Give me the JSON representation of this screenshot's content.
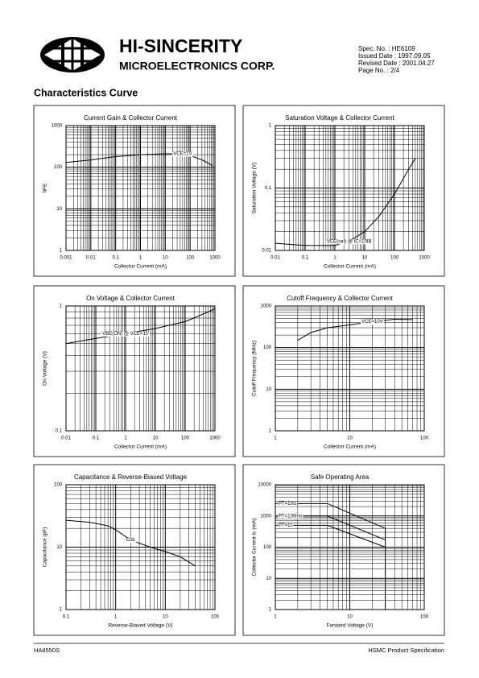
{
  "header": {
    "company": "HI-SINCERITY",
    "division": "MICROELECTRONICS CORP.",
    "spec_lines": [
      "Spec. No. : HE6109",
      "Issued Date : 1997.09.05",
      "Revised Date : 2001.04.27",
      "Page No. : 2/4"
    ]
  },
  "section_title": "Characteristics Curve",
  "footer": {
    "left": "HA8550S",
    "right": "HSMC Product Specification"
  },
  "chart_data": [
    {
      "type": "line",
      "title": "Current Gain & Collector Current",
      "x_label": "Collector Current (mA)",
      "y_label": "hFE",
      "log_x": true,
      "log_y": true,
      "grid": true,
      "xlim": [
        0.001,
        1000
      ],
      "xticks": [
        0.001,
        0.01,
        0.1,
        1,
        10,
        100,
        1000
      ],
      "ylim": [
        1,
        1000
      ],
      "yticks": [
        1,
        10,
        100,
        1000
      ],
      "x": [
        0.001,
        0.01,
        0.1,
        1,
        10,
        50,
        100,
        300,
        800
      ],
      "series": [
        {
          "name": "VCE=1V",
          "color": "#000000",
          "values": [
            130,
            150,
            180,
            200,
            210,
            210,
            190,
            150,
            110
          ]
        }
      ]
    },
    {
      "type": "line",
      "title": "Saturation Voltage & Collector Current",
      "x_label": "Collector Current (mA)",
      "y_label": "Saturation Voltage (V)",
      "log_x": true,
      "log_y": true,
      "grid": true,
      "xlim": [
        0.01,
        1000
      ],
      "xticks": [
        0.01,
        0.1,
        1,
        10,
        100,
        1000
      ],
      "ylim": [
        0.01,
        1
      ],
      "yticks": [
        0.01,
        0.1,
        1
      ],
      "x": [
        0.01,
        0.1,
        1,
        3,
        10,
        30,
        100,
        300,
        500
      ],
      "series": [
        {
          "name": "VCE(sat) @ IC=10IB",
          "color": "#000000",
          "values": [
            0.013,
            0.012,
            0.012,
            0.014,
            0.02,
            0.035,
            0.08,
            0.2,
            0.3
          ]
        }
      ]
    },
    {
      "type": "line",
      "title": "On Voltage &  Collector Current",
      "x_label": "Collector Current (mA)",
      "y_label": "On Voltage (V)",
      "log_x": true,
      "log_y": true,
      "grid": true,
      "xlim": [
        0.01,
        1000
      ],
      "xticks": [
        0.01,
        0.1,
        1,
        10,
        100,
        1000
      ],
      "ylim": [
        0.1,
        1
      ],
      "yticks": [
        0.1,
        1
      ],
      "x": [
        0.01,
        0.1,
        1,
        10,
        100,
        500,
        1000
      ],
      "series": [
        {
          "name": "VBE(ON) @ VCE=1V",
          "color": "#000000",
          "values": [
            0.5,
            0.55,
            0.6,
            0.66,
            0.75,
            0.88,
            0.95
          ]
        }
      ]
    },
    {
      "type": "line",
      "title": "Cutoff Frequency & Collector Current",
      "x_label": "Collector Current (mA)",
      "y_label": "Cutoff Frequency (MHz)",
      "log_x": true,
      "log_y": true,
      "grid": true,
      "xlim": [
        1,
        100
      ],
      "xticks": [
        1,
        10,
        100
      ],
      "ylim": [
        1,
        1000
      ],
      "yticks": [
        1,
        10,
        100,
        1000
      ],
      "x": [
        2,
        3,
        5,
        10,
        20,
        40,
        70
      ],
      "series": [
        {
          "name": "VCE=10V",
          "color": "#000000",
          "values": [
            150,
            230,
            300,
            350,
            420,
            480,
            470
          ]
        }
      ]
    },
    {
      "type": "line",
      "title": "Capacitance & Reverse-Biased Voltage",
      "x_label": "Reverse-Biased Voltage (V)",
      "y_label": "Capacitance (pF)",
      "log_x": true,
      "log_y": true,
      "grid": true,
      "xlim": [
        0.1,
        100
      ],
      "xticks": [
        0.1,
        1,
        10,
        100
      ],
      "ylim": [
        1,
        100
      ],
      "yticks": [
        1,
        10,
        100
      ],
      "x": [
        0.1,
        0.3,
        0.7,
        1,
        2,
        5,
        10,
        20,
        40
      ],
      "series": [
        {
          "name": "Cob",
          "color": "#000000",
          "values": [
            27,
            25,
            22,
            19,
            13,
            10,
            8.5,
            7,
            5
          ]
        }
      ]
    },
    {
      "type": "line",
      "title": "Safe Operating Area",
      "x_label": "Forward Voltage (V)",
      "y_label": "Collector Current Ic (mA)",
      "log_x": true,
      "log_y": true,
      "grid": true,
      "xlim": [
        1,
        100
      ],
      "xticks": [
        1,
        10,
        100
      ],
      "ylim": [
        1,
        10000
      ],
      "yticks": [
        1,
        10,
        100,
        1000,
        10000
      ],
      "x": [
        1,
        5,
        30,
        30
      ],
      "series": [
        {
          "name": "PT=1ms",
          "color": "#000000",
          "values": [
            2500,
            2500,
            400,
            1
          ]
        },
        {
          "name": "PT=100ms",
          "color": "#000000",
          "values": [
            1000,
            1000,
            170,
            null
          ]
        },
        {
          "name": "PT=1s",
          "color": "#000000",
          "values": [
            500,
            500,
            100,
            null
          ]
        }
      ]
    }
  ]
}
